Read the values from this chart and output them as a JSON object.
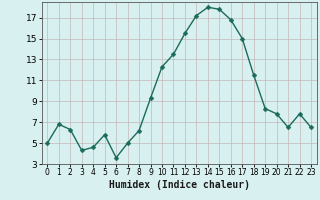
{
  "x": [
    0,
    1,
    2,
    3,
    4,
    5,
    6,
    7,
    8,
    9,
    10,
    11,
    12,
    13,
    14,
    15,
    16,
    17,
    18,
    19,
    20,
    21,
    22,
    23
  ],
  "y": [
    5.0,
    6.8,
    6.3,
    4.3,
    4.6,
    5.8,
    3.6,
    5.0,
    6.2,
    9.3,
    12.3,
    13.5,
    15.5,
    17.2,
    18.0,
    17.8,
    16.8,
    15.0,
    11.5,
    8.3,
    7.8,
    6.5,
    7.8,
    6.5
  ],
  "line_color": "#1a6b5a",
  "marker": "D",
  "marker_size": 2.5,
  "bg_color": "#d9f0f0",
  "grid_color": "#c4b8b8",
  "xlabel": "Humidex (Indice chaleur)",
  "xlabel_fontsize": 7,
  "ytick_fontsize": 6.5,
  "xtick_fontsize": 5.5,
  "ylim": [
    3,
    18.5
  ],
  "xlim": [
    -0.5,
    23.5
  ],
  "yticks": [
    3,
    5,
    7,
    9,
    11,
    13,
    15,
    17
  ],
  "xticks": [
    0,
    1,
    2,
    3,
    4,
    5,
    6,
    7,
    8,
    9,
    10,
    11,
    12,
    13,
    14,
    15,
    16,
    17,
    18,
    19,
    20,
    21,
    22,
    23
  ]
}
